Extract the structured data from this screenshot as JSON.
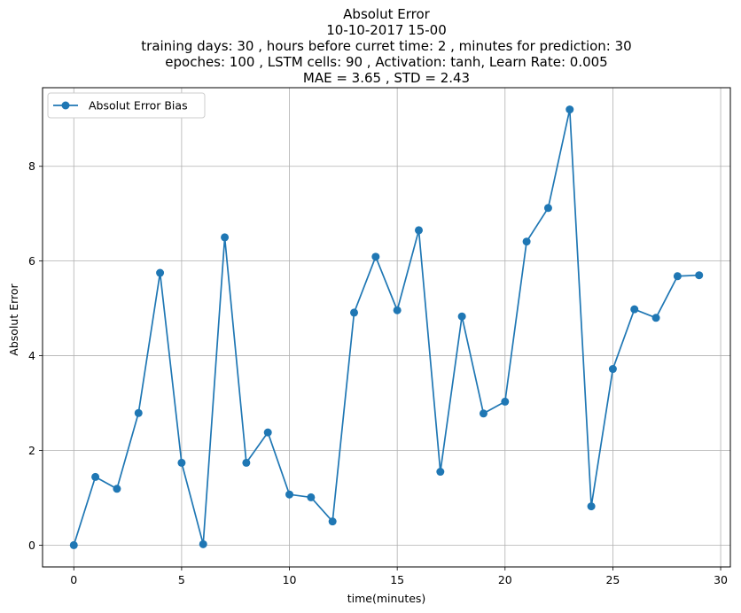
{
  "chart_data": {
    "type": "line",
    "title_lines": [
      "Absolut Error",
      "10-10-2017 15-00",
      "training days: 30 , hours before curret time: 2 , minutes for prediction: 30",
      "epoches: 100 , LSTM cells: 90 , Activation: tanh, Learn Rate: 0.005",
      "MAE = 3.65 , STD = 2.43"
    ],
    "xlabel": "time(minutes)",
    "ylabel": "Absolut Error",
    "xlim": [
      -1.45,
      30.45
    ],
    "ylim": [
      -0.46,
      9.66
    ],
    "xticks": [
      0,
      5,
      10,
      15,
      20,
      25,
      30
    ],
    "yticks": [
      0,
      2,
      4,
      6,
      8
    ],
    "grid": true,
    "legend_position": "top-left",
    "series": [
      {
        "name": "Absolut Error Bias",
        "color": "#1f77b4",
        "marker": "circle",
        "x": [
          0,
          1,
          2,
          3,
          4,
          5,
          6,
          7,
          8,
          9,
          10,
          11,
          12,
          13,
          14,
          15,
          16,
          17,
          18,
          19,
          20,
          21,
          22,
          23,
          24,
          25,
          26,
          27,
          28,
          29
        ],
        "y": [
          0.0,
          1.44,
          1.19,
          2.79,
          5.75,
          1.74,
          0.02,
          6.5,
          1.74,
          2.38,
          1.07,
          1.01,
          0.5,
          4.91,
          6.09,
          4.96,
          6.65,
          1.55,
          4.83,
          2.78,
          3.03,
          6.41,
          7.12,
          9.2,
          0.82,
          3.72,
          4.98,
          4.8,
          5.68,
          5.7
        ]
      }
    ]
  }
}
